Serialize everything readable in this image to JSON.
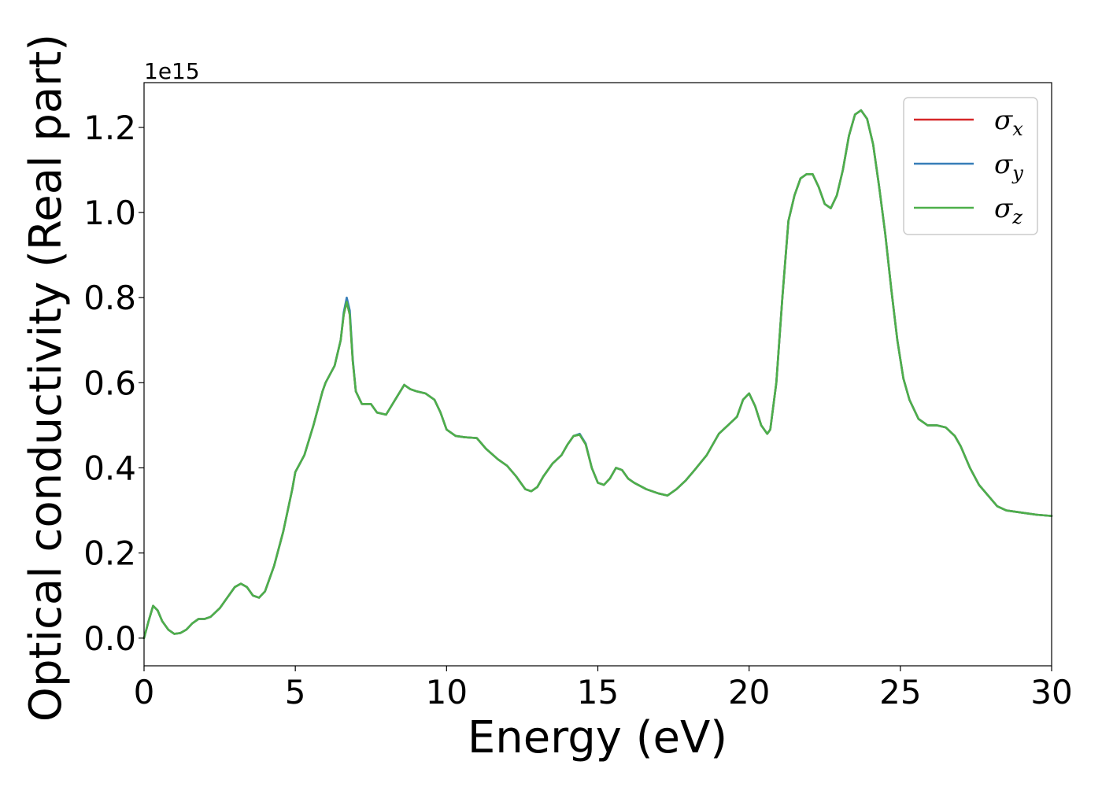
{
  "chart_data": {
    "type": "line",
    "title": "",
    "xlabel": "Energy (eV)",
    "ylabel": "Optical conductivity (Real part)",
    "y_offset_label": "1e15",
    "y_scale": 1000000000000000.0,
    "xlim": [
      0,
      30
    ],
    "ylim": [
      -0.065,
      1.305
    ],
    "xticks": [
      0,
      5,
      10,
      15,
      20,
      25,
      30
    ],
    "xtick_labels": [
      "0",
      "5",
      "10",
      "15",
      "20",
      "25",
      "30"
    ],
    "yticks": [
      0.0,
      0.2,
      0.4,
      0.6,
      0.8,
      1.0,
      1.2
    ],
    "ytick_labels": [
      "0.0",
      "0.2",
      "0.4",
      "0.6",
      "0.8",
      "1.0",
      "1.2"
    ],
    "grid": false,
    "legend_position": "top-right",
    "x": [
      0,
      0.15,
      0.3,
      0.45,
      0.6,
      0.8,
      1.0,
      1.2,
      1.4,
      1.6,
      1.8,
      2.0,
      2.2,
      2.5,
      2.8,
      3.0,
      3.2,
      3.4,
      3.6,
      3.8,
      4.0,
      4.3,
      4.6,
      4.9,
      5.0,
      5.3,
      5.6,
      5.9,
      6.0,
      6.3,
      6.5,
      6.6,
      6.7,
      6.8,
      6.9,
      7.0,
      7.2,
      7.5,
      7.7,
      8.0,
      8.3,
      8.6,
      8.8,
      9.0,
      9.3,
      9.6,
      9.8,
      10.0,
      10.3,
      10.6,
      11.0,
      11.3,
      11.7,
      12.0,
      12.3,
      12.6,
      12.8,
      13.0,
      13.2,
      13.5,
      13.8,
      14.0,
      14.2,
      14.4,
      14.6,
      14.8,
      15.0,
      15.2,
      15.4,
      15.6,
      15.8,
      16.0,
      16.2,
      16.6,
      17.0,
      17.3,
      17.6,
      17.9,
      18.2,
      18.6,
      19.0,
      19.3,
      19.6,
      19.8,
      20.0,
      20.2,
      20.4,
      20.6,
      20.7,
      20.9,
      21.1,
      21.3,
      21.5,
      21.7,
      21.9,
      22.1,
      22.3,
      22.5,
      22.7,
      22.9,
      23.1,
      23.3,
      23.5,
      23.7,
      23.9,
      24.1,
      24.3,
      24.5,
      24.7,
      24.9,
      25.1,
      25.3,
      25.6,
      25.9,
      26.2,
      26.5,
      26.8,
      27.0,
      27.3,
      27.6,
      27.9,
      28.2,
      28.5,
      29.0,
      29.5,
      30.0
    ],
    "series": [
      {
        "name": "σx",
        "color": "#d62728",
        "values": [
          0,
          0.04,
          0.076,
          0.065,
          0.04,
          0.02,
          0.01,
          0.012,
          0.02,
          0.035,
          0.045,
          0.045,
          0.05,
          0.07,
          0.1,
          0.12,
          0.128,
          0.12,
          0.1,
          0.095,
          0.11,
          0.17,
          0.25,
          0.35,
          0.39,
          0.43,
          0.5,
          0.58,
          0.6,
          0.64,
          0.7,
          0.76,
          0.79,
          0.76,
          0.65,
          0.58,
          0.55,
          0.55,
          0.53,
          0.525,
          0.56,
          0.595,
          0.585,
          0.58,
          0.575,
          0.56,
          0.53,
          0.49,
          0.475,
          0.472,
          0.47,
          0.445,
          0.42,
          0.405,
          0.38,
          0.35,
          0.345,
          0.355,
          0.38,
          0.41,
          0.43,
          0.455,
          0.475,
          0.478,
          0.455,
          0.4,
          0.365,
          0.36,
          0.375,
          0.4,
          0.395,
          0.375,
          0.365,
          0.35,
          0.34,
          0.335,
          0.35,
          0.37,
          0.395,
          0.43,
          0.48,
          0.5,
          0.52,
          0.56,
          0.575,
          0.545,
          0.5,
          0.48,
          0.49,
          0.6,
          0.8,
          0.98,
          1.04,
          1.08,
          1.09,
          1.09,
          1.06,
          1.02,
          1.01,
          1.04,
          1.1,
          1.18,
          1.23,
          1.24,
          1.22,
          1.16,
          1.06,
          0.95,
          0.82,
          0.7,
          0.61,
          0.56,
          0.515,
          0.5,
          0.5,
          0.495,
          0.475,
          0.45,
          0.4,
          0.36,
          0.335,
          0.31,
          0.3,
          0.295,
          0.29,
          0.287
        ]
      },
      {
        "name": "σy",
        "color": "#377eb8",
        "values": [
          0,
          0.04,
          0.076,
          0.065,
          0.04,
          0.02,
          0.01,
          0.012,
          0.02,
          0.035,
          0.045,
          0.045,
          0.05,
          0.07,
          0.1,
          0.12,
          0.128,
          0.12,
          0.1,
          0.095,
          0.11,
          0.17,
          0.25,
          0.35,
          0.39,
          0.43,
          0.5,
          0.58,
          0.6,
          0.64,
          0.7,
          0.765,
          0.8,
          0.77,
          0.655,
          0.58,
          0.55,
          0.55,
          0.53,
          0.525,
          0.56,
          0.595,
          0.585,
          0.58,
          0.575,
          0.56,
          0.53,
          0.49,
          0.475,
          0.472,
          0.47,
          0.445,
          0.42,
          0.405,
          0.38,
          0.35,
          0.345,
          0.355,
          0.38,
          0.41,
          0.43,
          0.455,
          0.475,
          0.48,
          0.457,
          0.4,
          0.365,
          0.36,
          0.375,
          0.4,
          0.395,
          0.375,
          0.365,
          0.35,
          0.34,
          0.335,
          0.35,
          0.37,
          0.395,
          0.43,
          0.48,
          0.5,
          0.52,
          0.56,
          0.575,
          0.545,
          0.5,
          0.48,
          0.49,
          0.6,
          0.8,
          0.98,
          1.04,
          1.08,
          1.09,
          1.09,
          1.06,
          1.02,
          1.01,
          1.04,
          1.1,
          1.18,
          1.23,
          1.24,
          1.22,
          1.16,
          1.06,
          0.95,
          0.82,
          0.7,
          0.61,
          0.56,
          0.515,
          0.5,
          0.5,
          0.495,
          0.475,
          0.45,
          0.4,
          0.36,
          0.335,
          0.31,
          0.3,
          0.295,
          0.29,
          0.287
        ]
      },
      {
        "name": "σz",
        "color": "#4daf4a",
        "values": [
          0,
          0.04,
          0.076,
          0.065,
          0.04,
          0.02,
          0.01,
          0.012,
          0.02,
          0.035,
          0.045,
          0.045,
          0.05,
          0.07,
          0.1,
          0.12,
          0.128,
          0.12,
          0.1,
          0.095,
          0.11,
          0.17,
          0.25,
          0.35,
          0.39,
          0.43,
          0.5,
          0.58,
          0.6,
          0.64,
          0.7,
          0.76,
          0.79,
          0.76,
          0.65,
          0.58,
          0.55,
          0.55,
          0.53,
          0.525,
          0.56,
          0.595,
          0.585,
          0.58,
          0.575,
          0.56,
          0.53,
          0.49,
          0.475,
          0.472,
          0.47,
          0.445,
          0.42,
          0.405,
          0.38,
          0.35,
          0.345,
          0.355,
          0.38,
          0.41,
          0.43,
          0.455,
          0.475,
          0.478,
          0.455,
          0.4,
          0.365,
          0.36,
          0.375,
          0.4,
          0.395,
          0.375,
          0.365,
          0.35,
          0.34,
          0.335,
          0.35,
          0.37,
          0.395,
          0.43,
          0.48,
          0.5,
          0.52,
          0.56,
          0.575,
          0.545,
          0.5,
          0.48,
          0.49,
          0.6,
          0.8,
          0.98,
          1.04,
          1.08,
          1.09,
          1.09,
          1.06,
          1.02,
          1.01,
          1.04,
          1.1,
          1.18,
          1.23,
          1.24,
          1.22,
          1.16,
          1.06,
          0.95,
          0.82,
          0.7,
          0.61,
          0.56,
          0.515,
          0.5,
          0.5,
          0.495,
          0.475,
          0.45,
          0.4,
          0.36,
          0.335,
          0.31,
          0.3,
          0.295,
          0.29,
          0.287
        ]
      }
    ]
  }
}
